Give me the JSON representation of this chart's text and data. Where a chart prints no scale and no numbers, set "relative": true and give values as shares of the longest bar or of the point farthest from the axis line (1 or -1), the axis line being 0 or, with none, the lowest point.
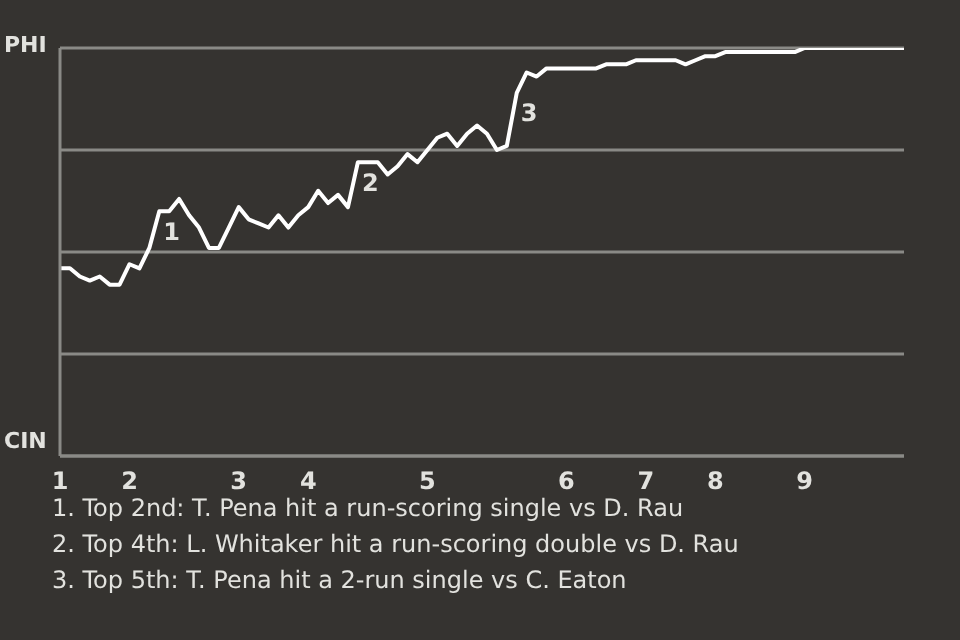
{
  "chart_data": {
    "type": "line",
    "color": "#ffffff",
    "relative": true,
    "categories": [
      "1",
      null,
      null,
      null,
      null,
      null,
      null,
      "2",
      null,
      null,
      null,
      null,
      null,
      null,
      null,
      null,
      null,
      null,
      "3",
      null,
      null,
      null,
      null,
      null,
      null,
      "4",
      null,
      null,
      null,
      null,
      null,
      null,
      null,
      null,
      null,
      null,
      null,
      "5",
      null,
      null,
      null,
      null,
      null,
      null,
      null,
      null,
      null,
      null,
      null,
      null,
      null,
      "6",
      null,
      null,
      null,
      null,
      null,
      null,
      null,
      "7",
      null,
      null,
      null,
      null,
      null,
      null,
      "8",
      null,
      null,
      null,
      null,
      null,
      null,
      null,
      null,
      "9",
      null,
      null,
      null,
      null,
      null,
      null,
      null,
      null,
      null,
      null
    ],
    "values": [
      0.46,
      0.46,
      0.44,
      0.43,
      0.44,
      0.42,
      0.42,
      0.47,
      0.46,
      0.51,
      0.6,
      0.6,
      0.63,
      0.59,
      0.56,
      0.51,
      0.51,
      0.56,
      0.61,
      0.58,
      0.57,
      0.56,
      0.59,
      0.56,
      0.59,
      0.61,
      0.65,
      0.62,
      0.64,
      0.61,
      0.72,
      0.72,
      0.72,
      0.69,
      0.71,
      0.74,
      0.72,
      0.75,
      0.78,
      0.79,
      0.76,
      0.79,
      0.81,
      0.79,
      0.75,
      0.76,
      0.89,
      0.94,
      0.93,
      0.95,
      0.95,
      0.95,
      0.95,
      0.95,
      0.95,
      0.96,
      0.96,
      0.96,
      0.97,
      0.97,
      0.97,
      0.97,
      0.97,
      0.96,
      0.97,
      0.98,
      0.98,
      0.99,
      0.99,
      0.99,
      0.99,
      0.99,
      0.99,
      0.99,
      0.99,
      1,
      1,
      1,
      1,
      1,
      1,
      1,
      1,
      1,
      1,
      1
    ],
    "grid": "y",
    "marker": "none",
    "line_style": "solid",
    "annotations": [
      "PHI",
      "CIN",
      {
        "text": "1",
        "y": 0.6
      },
      {
        "text": "2",
        "y": 0.72
      },
      {
        "text": "3",
        "y": 0.89
      },
      "1. Top 2nd: T. Pena hit a run-scoring single vs D. Rau",
      "2. Top 4th: L. Whitaker hit a run-scoring double vs D. Rau",
      "3. Top 5th: T. Pena hit a 2-run single vs C. Eaton"
    ]
  }
}
